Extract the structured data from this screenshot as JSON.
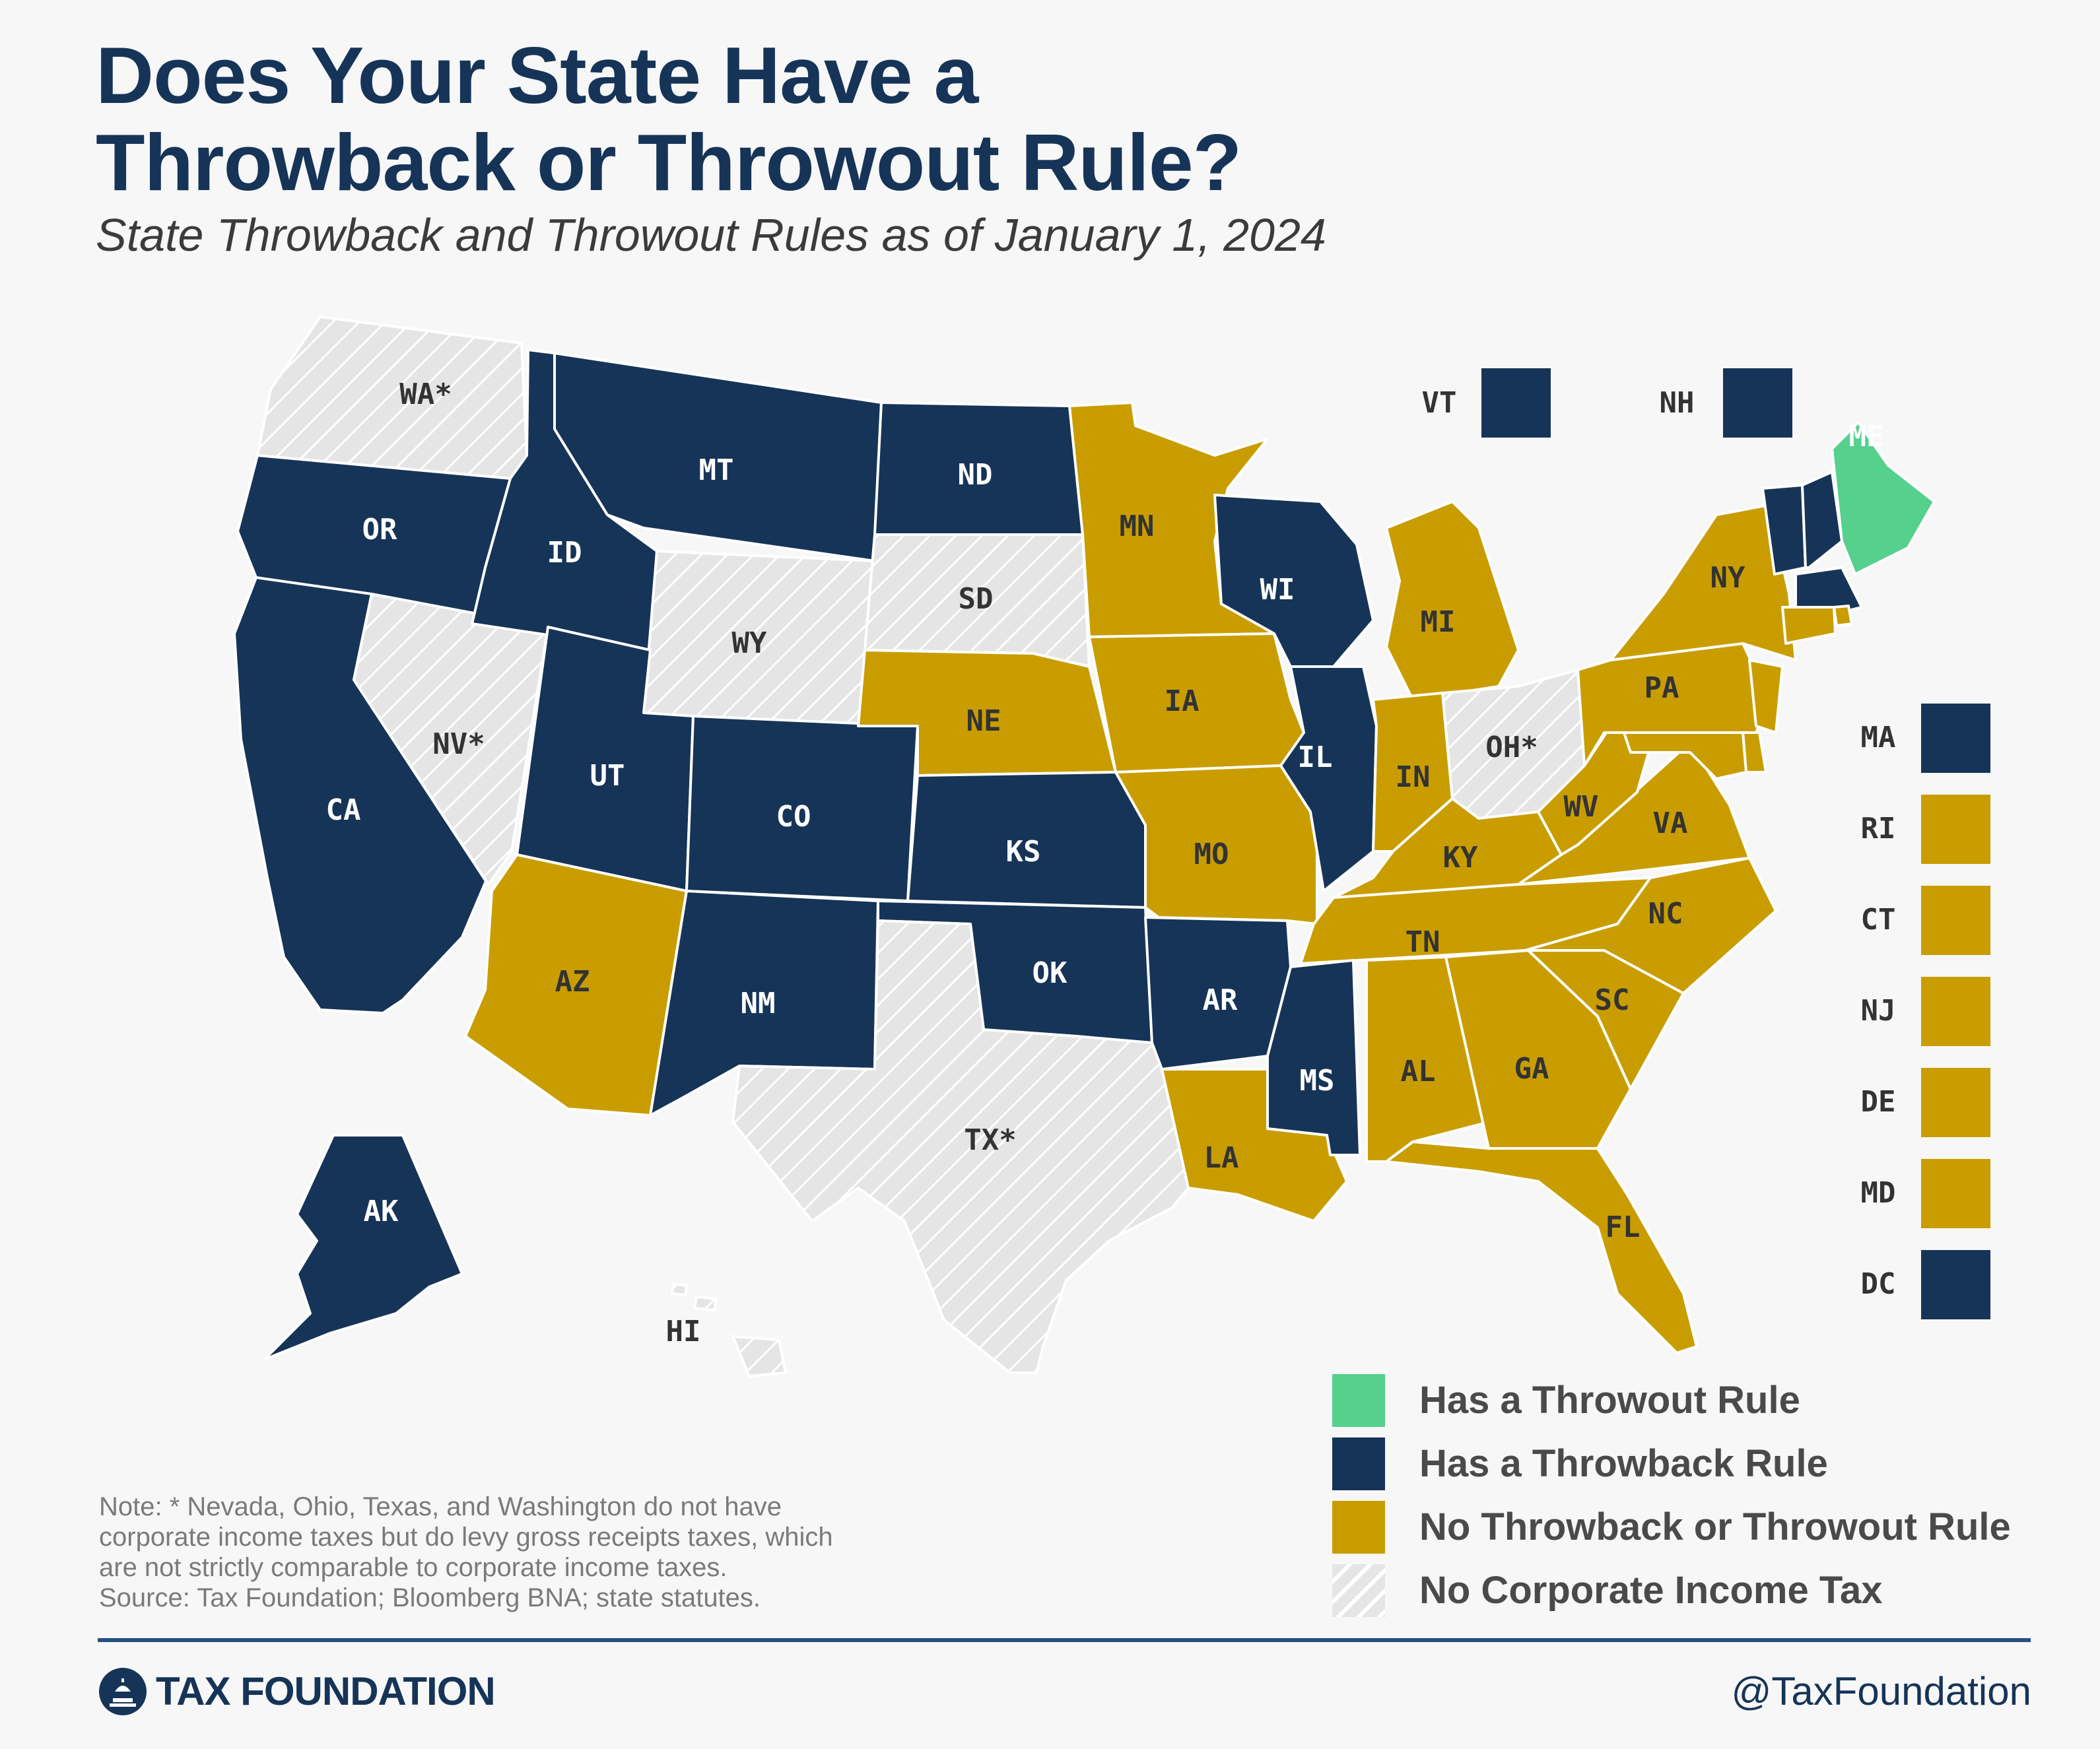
{
  "title_lines": [
    "Does Your State Have a",
    "Throwback or Throwout Rule?"
  ],
  "subtitle": "State Throwback and Throwout Rules as of  January 1, 2024",
  "colors": {
    "throwout": "#55d08d",
    "throwback": "#163457",
    "no_rule": "#c99d00",
    "no_tax": "#e5e5e5",
    "no_tax_stripe": "#ffffff",
    "label_dark": "#333333",
    "label_light": "#ffffff",
    "accent_line": "#26507f",
    "brand": "#163457"
  },
  "states": {
    "WA": {
      "label": "WA*",
      "category": "no_tax"
    },
    "OR": {
      "label": "OR",
      "category": "throwback"
    },
    "CA": {
      "label": "CA",
      "category": "throwback"
    },
    "NV": {
      "label": "NV*",
      "category": "no_tax"
    },
    "ID": {
      "label": "ID",
      "category": "throwback"
    },
    "MT": {
      "label": "MT",
      "category": "throwback"
    },
    "WY": {
      "label": "WY",
      "category": "no_tax"
    },
    "UT": {
      "label": "UT",
      "category": "throwback"
    },
    "AZ": {
      "label": "AZ",
      "category": "no_rule"
    },
    "CO": {
      "label": "CO",
      "category": "throwback"
    },
    "NM": {
      "label": "NM",
      "category": "throwback"
    },
    "ND": {
      "label": "ND",
      "category": "throwback"
    },
    "SD": {
      "label": "SD",
      "category": "no_tax"
    },
    "NE": {
      "label": "NE",
      "category": "no_rule"
    },
    "KS": {
      "label": "KS",
      "category": "throwback"
    },
    "OK": {
      "label": "OK",
      "category": "throwback"
    },
    "TX": {
      "label": "TX*",
      "category": "no_tax"
    },
    "MN": {
      "label": "MN",
      "category": "no_rule"
    },
    "IA": {
      "label": "IA",
      "category": "no_rule"
    },
    "MO": {
      "label": "MO",
      "category": "no_rule"
    },
    "AR": {
      "label": "AR",
      "category": "throwback"
    },
    "LA": {
      "label": "LA",
      "category": "no_rule"
    },
    "WI": {
      "label": "WI",
      "category": "throwback"
    },
    "IL": {
      "label": "IL",
      "category": "throwback"
    },
    "MI": {
      "label": "MI",
      "category": "no_rule"
    },
    "IN": {
      "label": "IN",
      "category": "no_rule"
    },
    "OH": {
      "label": "OH*",
      "category": "no_tax"
    },
    "KY": {
      "label": "KY",
      "category": "no_rule"
    },
    "TN": {
      "label": "TN",
      "category": "no_rule"
    },
    "MS": {
      "label": "MS",
      "category": "throwback"
    },
    "AL": {
      "label": "AL",
      "category": "no_rule"
    },
    "GA": {
      "label": "GA",
      "category": "no_rule"
    },
    "FL": {
      "label": "FL",
      "category": "no_rule"
    },
    "SC": {
      "label": "SC",
      "category": "no_rule"
    },
    "NC": {
      "label": "NC",
      "category": "no_rule"
    },
    "VA": {
      "label": "VA",
      "category": "no_rule"
    },
    "WV": {
      "label": "WV",
      "category": "no_rule"
    },
    "PA": {
      "label": "PA",
      "category": "no_rule"
    },
    "NY": {
      "label": "NY",
      "category": "no_rule"
    },
    "ME": {
      "label": "ME",
      "category": "throwout"
    },
    "AK": {
      "label": "AK",
      "category": "throwback"
    },
    "HI": {
      "label": "HI",
      "category": "no_tax"
    },
    "VT": {
      "label": "VT",
      "category": "throwback"
    },
    "NH": {
      "label": "NH",
      "category": "throwback"
    },
    "MA": {
      "label": "MA",
      "category": "throwback"
    },
    "RI": {
      "label": "RI",
      "category": "no_rule"
    },
    "CT": {
      "label": "CT",
      "category": "no_rule"
    },
    "NJ": {
      "label": "NJ",
      "category": "no_rule"
    },
    "DE": {
      "label": "DE",
      "category": "no_rule"
    },
    "MD": {
      "label": "MD",
      "category": "no_rule"
    },
    "DC": {
      "label": "DC",
      "category": "throwback"
    }
  },
  "legend": [
    {
      "key": "throwout",
      "label": "Has a Throwout Rule"
    },
    {
      "key": "throwback",
      "label": "Has a Throwback Rule"
    },
    {
      "key": "no_rule",
      "label": "No Throwback or Throwout Rule"
    },
    {
      "key": "no_tax",
      "label": "No Corporate Income Tax"
    }
  ],
  "note_lines": [
    "Note: * Nevada, Ohio, Texas, and Washington do not have",
    "corporate income taxes but do levy gross receipts taxes, which",
    "are not strictly comparable to corporate income taxes.",
    "Source: Tax Foundation; Bloomberg BNA; state statutes."
  ],
  "footer": {
    "logo_text": "TAX FOUNDATION",
    "handle": "@TaxFoundation"
  }
}
